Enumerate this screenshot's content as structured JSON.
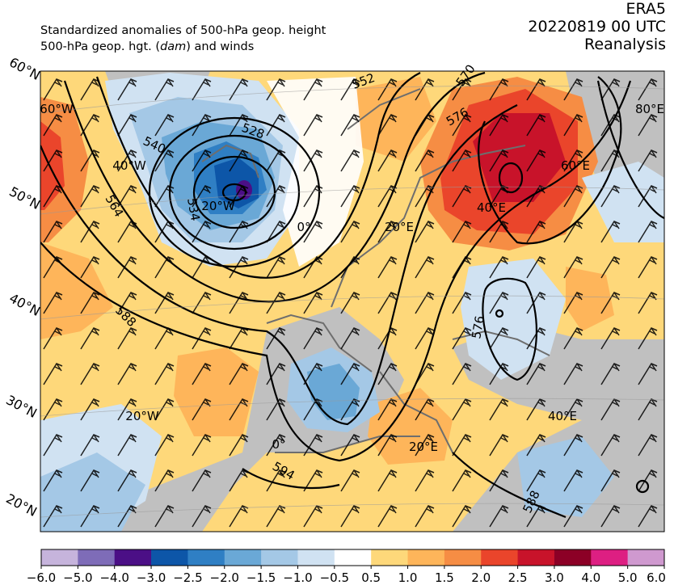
{
  "header": {
    "title_line1": "Standardized anomalies of 500-hPa geop. height",
    "title_line2_pre": "500-hPa geop. hgt. (",
    "title_line2_unit": "dam",
    "title_line2_post": ") and winds",
    "dataset": "ERA5",
    "datetime": "20220819 00 UTC",
    "product": "Reanalysis"
  },
  "map": {
    "lat_labels": [
      "60°N",
      "50°N",
      "40°N",
      "30°N",
      "20°N"
    ],
    "lon_labels": [
      "60°W",
      "40°W",
      "20°W",
      "0°",
      "20°E",
      "40°E",
      "60°E",
      "80°E",
      "20°W",
      "0°",
      "20°E",
      "40°E"
    ],
    "contour_labels": [
      "552",
      "570",
      "576",
      "540",
      "528",
      "534",
      "564",
      "588",
      "576",
      "594",
      "588"
    ],
    "colors": {
      "land": "#c0c0c0",
      "contour": "#000000",
      "coast": "#6e6e6e",
      "barb": "#000000"
    }
  },
  "colorbar": {
    "ticks": [
      "−6.0",
      "−5.0",
      "−4.0",
      "−3.0",
      "−2.5",
      "−2.0",
      "−1.5",
      "−1.0",
      "−0.5",
      "0.5",
      "1.0",
      "1.5",
      "2.0",
      "2.5",
      "3.0",
      "4.0",
      "5.0",
      "6.0"
    ],
    "colors": [
      "#c6b4dc",
      "#7e6cb8",
      "#4b0f86",
      "#0d56a8",
      "#2f7fc4",
      "#6aa8d6",
      "#a4c8e6",
      "#d0e2f2",
      "#ffffff",
      "#fed87a",
      "#feb55a",
      "#f68d44",
      "#ea452b",
      "#c8132a",
      "#8c0026",
      "#dd1f82",
      "#cf99cf"
    ]
  }
}
